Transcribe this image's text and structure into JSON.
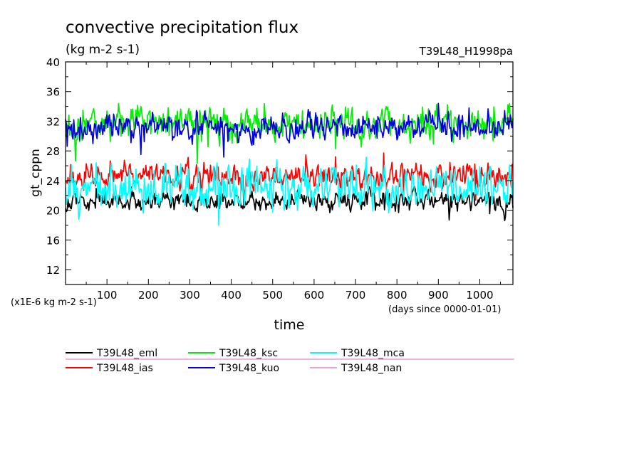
{
  "chart_data": {
    "type": "line",
    "title": "convective precipitation flux",
    "subtitle": "(kg m-2 s-1)",
    "run_label": "T39L48_H1998pa",
    "ylabel": "gt_cppn",
    "xlabel": "time",
    "x_unit_note": "(days since 0000-01-01)",
    "y_unit_note": "(x1E-6 kg m-2 s-1)",
    "xlim": [
      0,
      1080
    ],
    "ylim": [
      10,
      40
    ],
    "x_ticks": [
      100,
      200,
      300,
      400,
      500,
      600,
      700,
      800,
      900,
      1000
    ],
    "y_ticks": [
      12,
      16,
      20,
      24,
      28,
      32,
      36,
      40
    ],
    "x_tick_labels": [
      "100",
      "200",
      "300",
      "400",
      "500",
      "600",
      "700",
      "800",
      "900",
      "1000"
    ],
    "y_tick_labels": [
      "12",
      "16",
      "20",
      "24",
      "28",
      "32",
      "36",
      "40"
    ],
    "series": [
      {
        "name": "T39L48_eml",
        "color": "#000000",
        "mean": 21.2,
        "amp": 0.9
      },
      {
        "name": "T39L48_ias",
        "color": "#ff0000",
        "mean": 24.6,
        "amp": 1.1
      },
      {
        "name": "T39L48_ksc",
        "color": "#00ee00",
        "mean": 31.6,
        "amp": 1.6
      },
      {
        "name": "T39L48_kuo",
        "color": "#0000dd",
        "mean": 31.2,
        "amp": 1.2
      },
      {
        "name": "T39L48_mca",
        "color": "#00ffff",
        "mean": 23.2,
        "amp": 1.9
      },
      {
        "name": "T39L48_nan",
        "color": "#e8a0d8",
        "mean": null,
        "amp": null
      }
    ]
  }
}
